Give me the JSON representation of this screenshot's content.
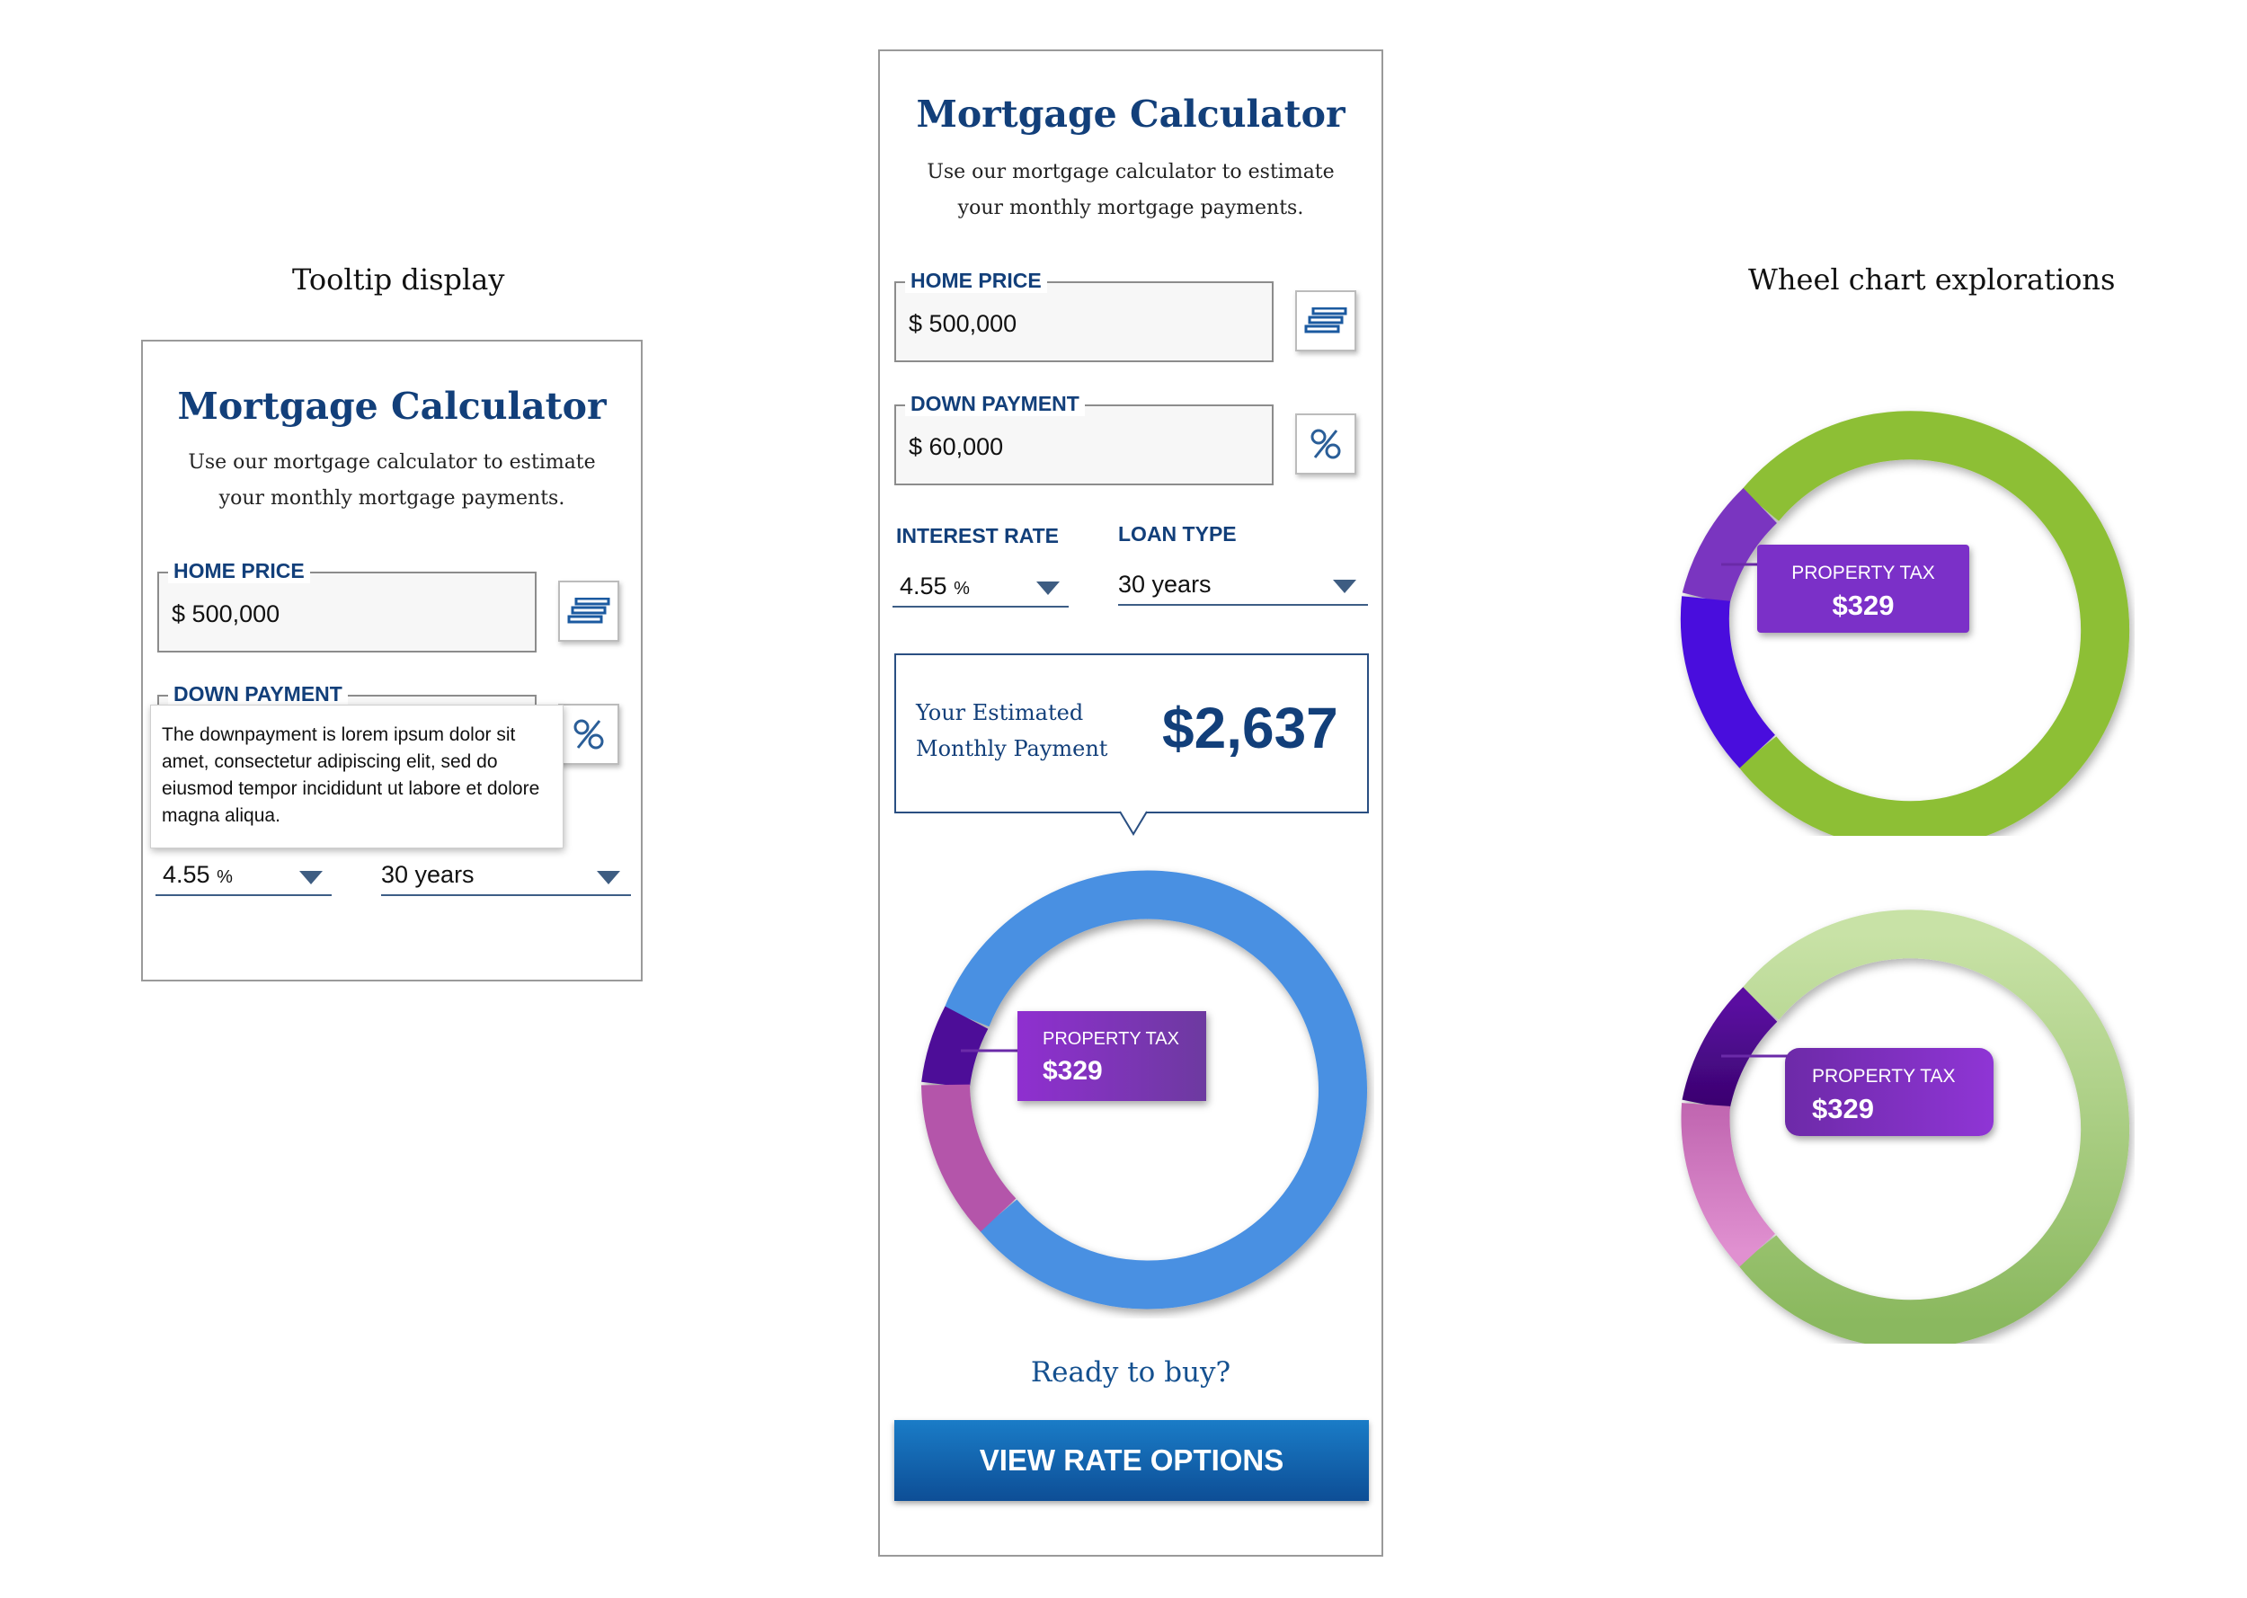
{
  "sections": {
    "tooltip_display": "Tooltip display",
    "wheel_explorations": "Wheel chart explorations"
  },
  "calculator": {
    "title": "Mortgage Calculator",
    "subtitle_line1": "Use our mortgage calculator to estimate",
    "subtitle_line2": "your monthly mortgage payments.",
    "home_price": {
      "label": "HOME PRICE",
      "currency": "$",
      "value": "500,000"
    },
    "down_payment": {
      "label": "DOWN PAYMENT",
      "currency": "$",
      "value": "60,000"
    },
    "interest_rate": {
      "label": "INTEREST RATE",
      "value": "4.55",
      "unit": "%"
    },
    "loan_type": {
      "label": "LOAN TYPE",
      "value": "30 years"
    },
    "payment": {
      "label_line1": "Your Estimated",
      "label_line2": "Monthly Payment",
      "amount": "$2,637"
    },
    "ready_text": "Ready to buy?",
    "cta_label": "VIEW RATE OPTIONS",
    "stack_icon": "stacked-bills-icon",
    "percent_icon": "percent-icon"
  },
  "tooltip": {
    "text": "The downpayment is lorem ipsum dolor sit amet, consectetur adipiscing elit, sed do eiusmod tempor incididunt ut labore et dolore magna aliqua."
  },
  "wheel_tag": {
    "label": "PROPERTY TAX",
    "value": "$329"
  },
  "colors": {
    "brand_blue": "#123f7a",
    "chart_blue": "#4a90e2",
    "purple_dark": "#5a0aa0",
    "magenta": "#b455aa",
    "green": "#8dbf35",
    "light_green": "#c2dea0",
    "tag_purple": "#7b30c8"
  }
}
